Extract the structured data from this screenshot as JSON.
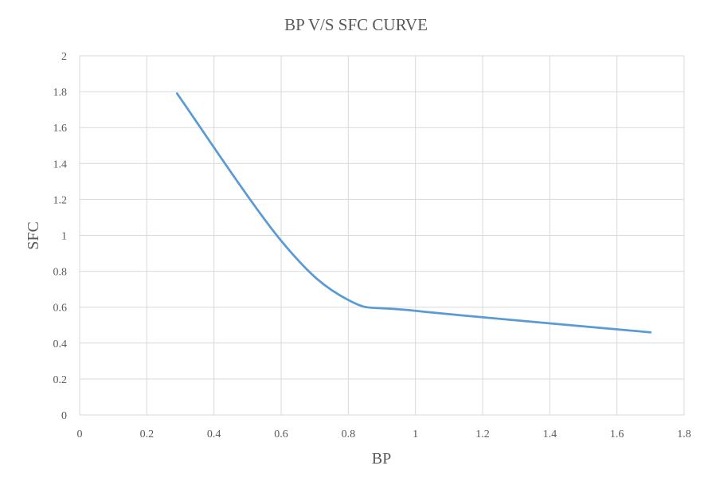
{
  "chart_data": {
    "type": "line",
    "title": "BP V/S SFC CURVE",
    "xlabel": "BP",
    "ylabel": "SFC",
    "xlim": [
      0,
      1.8
    ],
    "ylim": [
      0,
      2
    ],
    "x_ticks": [
      "0",
      "0.2",
      "0.4",
      "0.6",
      "0.8",
      "1",
      "1.2",
      "1.4",
      "1.6",
      "1.8"
    ],
    "y_ticks": [
      "0",
      "0.2",
      "0.4",
      "0.6",
      "0.8",
      "1",
      "1.2",
      "1.4",
      "1.6",
      "1.8",
      "2"
    ],
    "grid": true,
    "legend": "none",
    "series": [
      {
        "color": "#5b9bd5",
        "smooth": true,
        "points": [
          {
            "x": 0.29,
            "y": 1.79
          },
          {
            "x": 0.6,
            "y": 0.97
          },
          {
            "x": 0.8,
            "y": 0.64
          },
          {
            "x": 1.0,
            "y": 0.58
          },
          {
            "x": 1.7,
            "y": 0.46
          }
        ]
      }
    ]
  }
}
